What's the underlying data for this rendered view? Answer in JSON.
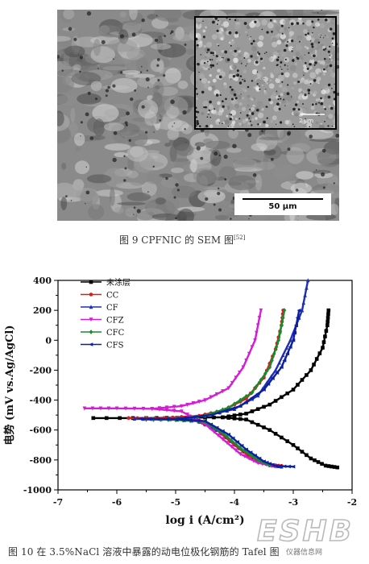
{
  "figure9": {
    "scale_bar_label": "50 μm",
    "inset_scale_label": "2 μm",
    "caption_prefix": "图 9 CPFNIC 的 SEM 图",
    "caption_ref": "[52]"
  },
  "figure10": {
    "caption": "图 10 在 3.5%NaCl 溶液中暴露的动电位极化钢筋的 Tafel 图"
  },
  "watermark": {
    "logo_text": "ESHB",
    "sub_text": "仪器信息网"
  },
  "chart_data": {
    "type": "line",
    "xlabel": "log i (A/cm²)",
    "ylabel": "电势 (mV vs.Ag/AgCl)",
    "xlim": [
      -7,
      -2
    ],
    "ylim": [
      -1000,
      400
    ],
    "xticks": [
      -7,
      -6,
      -5,
      -4,
      -3,
      -2
    ],
    "yticks": [
      -1000,
      -800,
      -600,
      -400,
      -200,
      0,
      200,
      400
    ],
    "legend_position": "top-left",
    "series": [
      {
        "name": "未涂层",
        "color": "#000000",
        "marker": "square",
        "cathodic": [
          [
            -6.4,
            -520
          ],
          [
            -5.5,
            -520
          ],
          [
            -4.8,
            -518
          ],
          [
            -4.2,
            -515
          ],
          [
            -3.8,
            -530
          ],
          [
            -3.4,
            -600
          ],
          [
            -3.0,
            -700
          ],
          [
            -2.7,
            -790
          ],
          [
            -2.45,
            -838
          ],
          [
            -2.25,
            -850
          ]
        ],
        "anodic": [
          [
            -4.2,
            -515
          ],
          [
            -3.8,
            -490
          ],
          [
            -3.4,
            -430
          ],
          [
            -3.0,
            -330
          ],
          [
            -2.7,
            -200
          ],
          [
            -2.5,
            -50
          ],
          [
            -2.42,
            100
          ],
          [
            -2.4,
            200
          ]
        ]
      },
      {
        "name": "CC",
        "color": "#d42020",
        "marker": "circle",
        "cathodic": [
          [
            -5.8,
            -520
          ],
          [
            -5.2,
            -522
          ],
          [
            -4.7,
            -530
          ],
          [
            -4.3,
            -600
          ],
          [
            -4.0,
            -700
          ],
          [
            -3.7,
            -790
          ],
          [
            -3.4,
            -832
          ],
          [
            -3.2,
            -840
          ]
        ],
        "anodic": [
          [
            -5.2,
            -520
          ],
          [
            -4.6,
            -505
          ],
          [
            -4.2,
            -470
          ],
          [
            -3.8,
            -390
          ],
          [
            -3.5,
            -250
          ],
          [
            -3.3,
            -60
          ],
          [
            -3.2,
            100
          ],
          [
            -3.17,
            200
          ]
        ]
      },
      {
        "name": "CF",
        "color": "#1f2fb5",
        "marker": "triangle-up",
        "cathodic": [
          [
            -5.7,
            -525
          ],
          [
            -5.1,
            -528
          ],
          [
            -4.6,
            -540
          ],
          [
            -4.2,
            -620
          ],
          [
            -3.9,
            -720
          ],
          [
            -3.6,
            -800
          ],
          [
            -3.4,
            -835
          ],
          [
            -3.2,
            -845
          ]
        ],
        "anodic": [
          [
            -5.1,
            -528
          ],
          [
            -4.5,
            -505
          ],
          [
            -4.0,
            -460
          ],
          [
            -3.6,
            -370
          ],
          [
            -3.3,
            -200
          ],
          [
            -3.05,
            0
          ],
          [
            -2.85,
            200
          ],
          [
            -2.75,
            400
          ]
        ]
      },
      {
        "name": "CFZ",
        "color": "#d21fd2",
        "marker": "triangle-down",
        "cathodic": [
          [
            -6.55,
            -455
          ],
          [
            -6.0,
            -455
          ],
          [
            -5.4,
            -458
          ],
          [
            -4.9,
            -475
          ],
          [
            -4.5,
            -560
          ],
          [
            -4.2,
            -660
          ],
          [
            -3.9,
            -760
          ],
          [
            -3.6,
            -820
          ],
          [
            -3.3,
            -843
          ]
        ],
        "anodic": [
          [
            -5.4,
            -458
          ],
          [
            -4.9,
            -440
          ],
          [
            -4.5,
            -400
          ],
          [
            -4.1,
            -320
          ],
          [
            -3.85,
            -180
          ],
          [
            -3.65,
            0
          ],
          [
            -3.55,
            200
          ]
        ]
      },
      {
        "name": "CFC",
        "color": "#1a8a2a",
        "marker": "diamond",
        "cathodic": [
          [
            -5.5,
            -530
          ],
          [
            -5.0,
            -532
          ],
          [
            -4.5,
            -545
          ],
          [
            -4.2,
            -620
          ],
          [
            -3.9,
            -720
          ],
          [
            -3.6,
            -800
          ],
          [
            -3.4,
            -835
          ]
        ],
        "anodic": [
          [
            -5.0,
            -532
          ],
          [
            -4.5,
            -505
          ],
          [
            -4.1,
            -450
          ],
          [
            -3.7,
            -350
          ],
          [
            -3.4,
            -180
          ],
          [
            -3.25,
            0
          ],
          [
            -3.15,
            200
          ]
        ]
      },
      {
        "name": "CFS",
        "color": "#0b1fa0",
        "marker": "triangle-left",
        "cathodic": [
          [
            -5.6,
            -525
          ],
          [
            -5.0,
            -528
          ],
          [
            -4.5,
            -540
          ],
          [
            -4.1,
            -630
          ],
          [
            -3.8,
            -730
          ],
          [
            -3.5,
            -810
          ],
          [
            -3.3,
            -840
          ],
          [
            -3.0,
            -845
          ]
        ],
        "anodic": [
          [
            -5.0,
            -528
          ],
          [
            -4.4,
            -500
          ],
          [
            -3.9,
            -440
          ],
          [
            -3.5,
            -330
          ],
          [
            -3.2,
            -180
          ],
          [
            -3.0,
            0
          ],
          [
            -2.9,
            200
          ]
        ]
      }
    ]
  }
}
